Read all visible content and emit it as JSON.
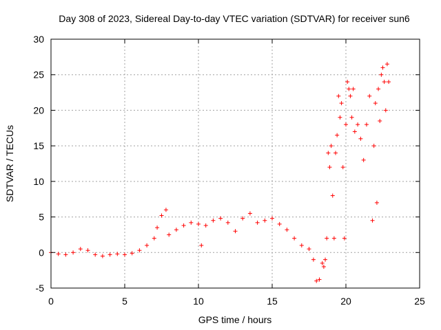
{
  "chart_data": {
    "type": "scatter",
    "title": "Day 308 of 2023, Sidereal Day-to-day VTEC variation (SDTVAR) for receiver sun6",
    "xlabel": "GPS time / hours",
    "ylabel": "SDTVAR / TECUs",
    "xlim": [
      0,
      25
    ],
    "ylim": [
      -5,
      30
    ],
    "xticks": [
      "0",
      "5",
      "10",
      "15",
      "20",
      "25"
    ],
    "yticks": [
      "-5",
      "0",
      "5",
      "10",
      "15",
      "20",
      "25",
      "30"
    ],
    "grid": true,
    "marker": "plus",
    "color": "#ff0000",
    "series": [
      {
        "name": "sun6",
        "x": [
          0.0,
          0.5,
          1.0,
          1.5,
          2.0,
          2.5,
          3.0,
          3.5,
          4.0,
          4.5,
          5.0,
          5.5,
          6.0,
          6.5,
          7.0,
          7.2,
          7.5,
          7.8,
          8.0,
          8.5,
          9.0,
          9.5,
          10.0,
          10.2,
          10.5,
          11.0,
          11.5,
          12.0,
          12.5,
          13.0,
          13.5,
          14.0,
          14.5,
          15.0,
          15.5,
          16.0,
          16.5,
          17.0,
          17.5,
          17.8,
          18.0,
          18.2,
          18.4,
          18.5,
          18.6,
          18.7,
          18.8,
          18.9,
          19.0,
          19.1,
          19.2,
          19.3,
          19.4,
          19.5,
          19.6,
          19.7,
          19.8,
          19.9,
          20.0,
          20.1,
          20.2,
          20.3,
          20.4,
          20.5,
          20.6,
          20.8,
          21.0,
          21.2,
          21.4,
          21.6,
          21.8,
          21.9,
          22.0,
          22.1,
          22.2,
          22.3,
          22.4,
          22.5,
          22.6,
          22.7,
          22.8,
          22.9
        ],
        "y": [
          0.0,
          -0.2,
          -0.3,
          0.0,
          0.5,
          0.3,
          -0.3,
          -0.5,
          -0.3,
          -0.2,
          -0.3,
          -0.1,
          0.3,
          1.0,
          2.0,
          3.5,
          5.2,
          6.0,
          2.5,
          3.2,
          3.8,
          4.2,
          4.0,
          1.0,
          3.8,
          4.5,
          4.8,
          4.2,
          3.0,
          4.8,
          5.5,
          4.2,
          4.5,
          4.8,
          4.0,
          3.2,
          2.0,
          1.0,
          0.5,
          -1.0,
          -4.0,
          -3.8,
          -1.5,
          -2.0,
          -1.0,
          2.0,
          14.0,
          12.0,
          15.0,
          8.0,
          2.0,
          14.0,
          16.5,
          22.0,
          19.0,
          21.0,
          12.0,
          2.0,
          18.0,
          24.0,
          23.0,
          22.0,
          19.0,
          23.0,
          17.0,
          18.0,
          16.0,
          13.0,
          18.0,
          22.0,
          4.5,
          15.0,
          21.0,
          7.0,
          23.0,
          18.5,
          25.0,
          26.0,
          24.0,
          20.0,
          26.5,
          24.0
        ]
      }
    ]
  }
}
